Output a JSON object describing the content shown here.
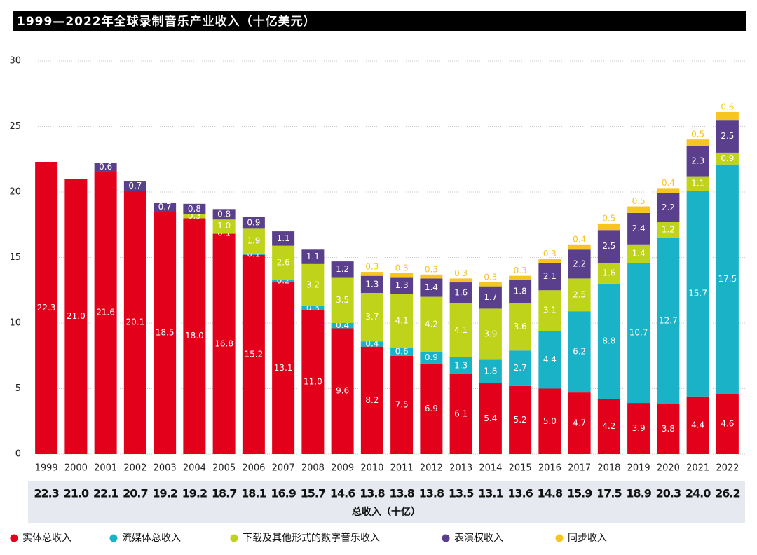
{
  "chart_data": {
    "type": "stacked_bar",
    "title": "1999—2022年全球录制音乐产业收入（十亿美元）",
    "categories": [
      "1999",
      "2000",
      "2001",
      "2002",
      "2003",
      "2004",
      "2005",
      "2006",
      "2007",
      "2008",
      "2009",
      "2010",
      "2011",
      "2012",
      "2013",
      "2014",
      "2015",
      "2016",
      "2017",
      "2018",
      "2019",
      "2020",
      "2021",
      "2022"
    ],
    "series": [
      {
        "name": "实体总收入",
        "color": "#e3001b",
        "values": [
          22.3,
          21,
          21.6,
          20.1,
          18.5,
          18,
          16.8,
          15.2,
          13.1,
          11,
          9.6,
          8.2,
          7.5,
          6.9,
          6.1,
          5.4,
          5.2,
          5,
          4.7,
          4.2,
          3.9,
          3.8,
          4.4,
          4.6
        ],
        "value_labels": [
          "22.3",
          "21.0",
          "21.6",
          "20.1",
          "18.5",
          "18.0",
          "16.8",
          "15.2",
          "13.1",
          "11.0",
          "9.6",
          "8.2",
          "7.5",
          "6.9",
          "6.1",
          "5.4",
          "5.2",
          "5.0",
          "4.7",
          "4.2",
          "3.9",
          "3.8",
          "4.4",
          "4.6"
        ]
      },
      {
        "name": "流媒体总收入",
        "color": "#1ab2c6",
        "values": [
          null,
          null,
          null,
          null,
          null,
          null,
          0.1,
          0.1,
          0.2,
          0.3,
          0.4,
          0.4,
          0.6,
          0.9,
          1.3,
          1.8,
          2.7,
          4.4,
          6.2,
          8.8,
          10.7,
          12.7,
          15.7,
          17.5
        ],
        "value_labels": [
          null,
          null,
          null,
          null,
          null,
          null,
          "0.1",
          "0.1",
          "0.2",
          "0.3",
          "0.4",
          "0.4",
          "0.6",
          "0.9",
          "1.3",
          "1.8",
          "2.7",
          "4.4",
          "6.2",
          "8.8",
          "10.7",
          "12.7",
          "15.7",
          "17.5"
        ]
      },
      {
        "name": "下载及其他形式的数字音乐收入",
        "color": "#bfd31b",
        "values": [
          null,
          null,
          null,
          null,
          null,
          0.3,
          1,
          1.9,
          2.6,
          3.2,
          3.5,
          3.7,
          4.1,
          4.2,
          4.1,
          3.9,
          3.6,
          3.1,
          2.5,
          1.6,
          1.4,
          1.2,
          1.1,
          0.9
        ],
        "value_labels": [
          null,
          null,
          null,
          null,
          null,
          "0.3",
          "1.0",
          "1.9",
          "2.6",
          "3.2",
          "3.5",
          "3.7",
          "4.1",
          "4.2",
          "4.1",
          "3.9",
          "3.6",
          "3.1",
          "2.5",
          "1.6",
          "1.4",
          "1.2",
          "1.1",
          "0.9"
        ]
      },
      {
        "name": "表演权收入",
        "color": "#5a3f8c",
        "values": [
          null,
          null,
          0.6,
          0.7,
          0.7,
          0.8,
          0.8,
          0.9,
          1.1,
          1.1,
          1.2,
          1.3,
          1.3,
          1.4,
          1.6,
          1.7,
          1.8,
          2.1,
          2.2,
          2.5,
          2.4,
          2.2,
          2.3,
          2.5
        ],
        "value_labels": [
          null,
          null,
          "0.6",
          "0.7",
          "0.7",
          "0.8",
          "0.8",
          "0.9",
          "1.1",
          "1.1",
          "1.2",
          "1.3",
          "1.3",
          "1.4",
          "1.6",
          "1.7",
          "1.8",
          "2.1",
          "2.2",
          "2.5",
          "2.4",
          "2.2",
          "2.3",
          "2.5"
        ]
      },
      {
        "name": "同步收入",
        "color": "#f7c520",
        "values": [
          null,
          null,
          null,
          null,
          null,
          null,
          null,
          null,
          null,
          null,
          null,
          0.3,
          0.3,
          0.3,
          0.3,
          0.3,
          0.3,
          0.3,
          0.4,
          0.5,
          0.5,
          0.4,
          0.5,
          0.6
        ],
        "value_labels": [
          null,
          null,
          null,
          null,
          null,
          null,
          null,
          null,
          null,
          null,
          null,
          "0.3",
          "0.3",
          "0.3",
          "0.3",
          "0.3",
          "0.3",
          "0.3",
          "0.4",
          "0.5",
          "0.5",
          "0.4",
          "0.5",
          "0.6"
        ]
      }
    ],
    "ylim": [
      0,
      30
    ],
    "yticks": [
      0,
      5,
      10,
      15,
      20,
      25,
      30
    ],
    "grid": true,
    "totals": [
      "22.3",
      "21.0",
      "22.1",
      "20.7",
      "19.2",
      "19.2",
      "18.7",
      "18.1",
      "16.9",
      "15.7",
      "14.6",
      "13.8",
      "13.8",
      "13.8",
      "13.5",
      "13.1",
      "13.6",
      "14.8",
      "15.9",
      "17.5",
      "18.9",
      "20.3",
      "24.0",
      "26.2"
    ],
    "totals_title": "总收入（十亿）"
  }
}
